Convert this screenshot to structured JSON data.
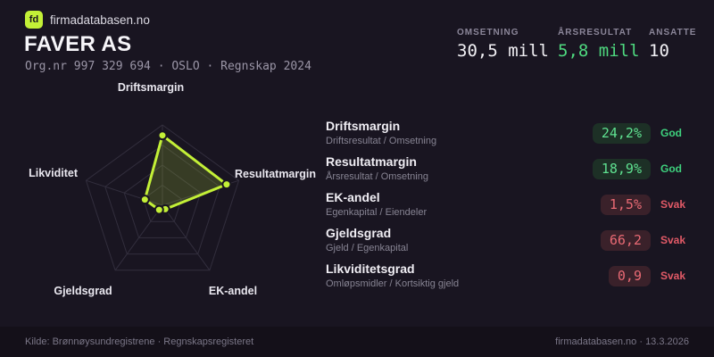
{
  "brand": {
    "logo": "fd",
    "name": "firmadatabasen.no",
    "accent": "#c3f037"
  },
  "header": {
    "company": "FAVER AS",
    "meta": "Org.nr 997 329 694 · OSLO · Regnskap 2024"
  },
  "stats": [
    {
      "label": "OMSETNING",
      "value": "30,5 mill",
      "tone": "default"
    },
    {
      "label": "ÅRSRESULTAT",
      "value": "5,8 mill",
      "tone": "highlight"
    },
    {
      "label": "ANSATTE",
      "value": "10",
      "tone": "default"
    }
  ],
  "chart_data": {
    "type": "radar",
    "axes": [
      "Driftsmargin",
      "Resultatmargin",
      "EK-andel",
      "Gjeldsgrad",
      "Likviditet"
    ],
    "values": [
      0.87,
      0.84,
      0.06,
      0.07,
      0.23
    ],
    "value_range": [
      0,
      1
    ],
    "rings": 4,
    "grid": "pentagon with spokes",
    "series_color": "#c3f037",
    "fill_opacity": 0.18
  },
  "metrics": [
    {
      "title": "Driftsmargin",
      "formula": "Driftsresultat / Omsetning",
      "value": "24,2%",
      "status": "God",
      "tone": "good"
    },
    {
      "title": "Resultatmargin",
      "formula": "Årsresultat / Omsetning",
      "value": "18,9%",
      "status": "God",
      "tone": "good"
    },
    {
      "title": "EK-andel",
      "formula": "Egenkapital / Eiendeler",
      "value": "1,5%",
      "status": "Svak",
      "tone": "weak"
    },
    {
      "title": "Gjeldsgrad",
      "formula": "Gjeld / Egenkapital",
      "value": "66,2",
      "status": "Svak",
      "tone": "weak"
    },
    {
      "title": "Likviditetsgrad",
      "formula": "Omløpsmidler / Kortsiktig gjeld",
      "value": "0,9",
      "status": "Svak",
      "tone": "weak"
    }
  ],
  "status_colors": {
    "good": "#3ed07d",
    "weak": "#e25a67"
  },
  "footer": {
    "left": "Kilde: Brønnøysundregistrene · Regnskapsregisteret",
    "right": "firmadatabasen.no · 13.3.2026"
  }
}
